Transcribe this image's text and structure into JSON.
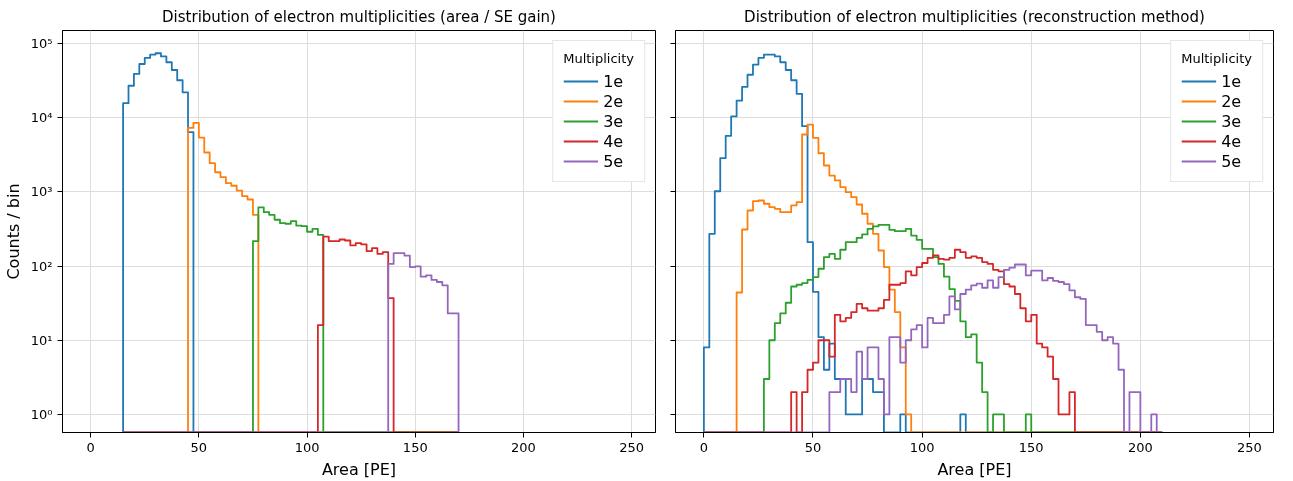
{
  "chart_data": [
    {
      "type": "histogram",
      "title": "Distribution of electron multiplicities (area / SE gain)",
      "xlabel": "Area [PE]",
      "ylabel": "Counts / bin",
      "legend_title": "Multiplicity",
      "legend": "top right",
      "grid": true,
      "log": "y",
      "xlim": [
        -13,
        261
      ],
      "ylim": [
        0.57,
        150000
      ],
      "xticks": [
        0,
        50,
        100,
        150,
        200,
        250
      ],
      "yticks": [
        {
          "value": 1,
          "label": "10⁰"
        },
        {
          "value": 10,
          "label": "10¹"
        },
        {
          "value": 100,
          "label": "10²"
        },
        {
          "value": 1000,
          "label": "10³"
        },
        {
          "value": 10000,
          "label": "10⁴"
        },
        {
          "value": 100000,
          "label": "10⁵"
        }
      ],
      "bins": [
        15,
        17.5,
        20,
        22.5,
        25,
        27.5,
        30,
        32.5,
        35,
        37.5,
        40,
        42.5,
        45,
        47.5,
        50,
        52.5,
        55,
        57.5,
        60,
        62.5,
        65,
        67.5,
        70,
        72.5,
        75,
        77.5,
        80,
        82.5,
        85,
        87.5,
        90,
        92.5,
        95,
        97.5,
        100,
        102.5,
        105,
        107.5,
        110,
        112.5,
        115,
        117.5,
        120,
        122.5,
        125,
        127.5,
        130,
        132.5,
        135,
        137.5,
        140,
        142.5,
        145,
        147.5,
        150,
        152.5,
        155,
        157.5,
        160,
        162.5,
        165,
        167.5,
        170
      ],
      "series": [
        {
          "name": "1e",
          "color": "#1f77b4",
          "values": [
            15700,
            27000,
            39000,
            53000,
            64000,
            71000,
            74000,
            67000,
            56000,
            44000,
            32000,
            22000,
            6400,
            null,
            null,
            null,
            null,
            null,
            null,
            null,
            null,
            null,
            null,
            null,
            null,
            null,
            null,
            null,
            null,
            null,
            null,
            null,
            null,
            null,
            null,
            null,
            null,
            null,
            null,
            null,
            null,
            null,
            null,
            null,
            null,
            null,
            null,
            null,
            null,
            null,
            null,
            null,
            null,
            null,
            null,
            null,
            null,
            null,
            null,
            null,
            null,
            null
          ]
        },
        {
          "name": "2e",
          "color": "#ff7f0e",
          "values": [
            null,
            null,
            null,
            null,
            null,
            null,
            null,
            null,
            null,
            null,
            null,
            null,
            7300,
            8500,
            5400,
            3400,
            2440,
            1840,
            1580,
            1310,
            1210,
            1040,
            875,
            790,
            490,
            null,
            null,
            null,
            null,
            null,
            null,
            null,
            null,
            null,
            null,
            null,
            null,
            null,
            null,
            null,
            null,
            null,
            null,
            null,
            null,
            null,
            null,
            null,
            null,
            null,
            null,
            null,
            null,
            null,
            null,
            null,
            null,
            null,
            null,
            null,
            null,
            null
          ]
        },
        {
          "name": "3e",
          "color": "#2ca02c",
          "values": [
            null,
            null,
            null,
            null,
            null,
            null,
            null,
            null,
            null,
            null,
            null,
            null,
            null,
            null,
            null,
            null,
            null,
            null,
            null,
            null,
            null,
            null,
            null,
            null,
            217,
            620,
            533,
            491,
            421,
            379,
            372,
            403,
            352,
            345,
            290,
            318,
            264,
            null,
            null,
            null,
            null,
            null,
            null,
            null,
            null,
            null,
            null,
            null,
            null,
            null,
            null,
            null,
            null,
            null,
            null,
            null,
            null,
            null,
            null,
            null,
            null,
            null
          ]
        },
        {
          "name": "4e",
          "color": "#d62728",
          "values": [
            null,
            null,
            null,
            null,
            null,
            null,
            null,
            null,
            null,
            null,
            null,
            null,
            null,
            null,
            null,
            null,
            null,
            null,
            null,
            null,
            null,
            null,
            null,
            null,
            null,
            null,
            null,
            null,
            null,
            null,
            null,
            null,
            null,
            null,
            null,
            null,
            16,
            250,
            217,
            217,
            228,
            221,
            190,
            204,
            196,
            159,
            174,
            146,
            154,
            37,
            null,
            null,
            null,
            null,
            null,
            null,
            null,
            null,
            null,
            null,
            null,
            null
          ]
        },
        {
          "name": "5e",
          "color": "#9467bd",
          "values": [
            null,
            null,
            null,
            null,
            null,
            null,
            null,
            null,
            null,
            null,
            null,
            null,
            null,
            null,
            null,
            null,
            null,
            null,
            null,
            null,
            null,
            null,
            null,
            null,
            null,
            null,
            null,
            null,
            null,
            null,
            null,
            null,
            null,
            null,
            null,
            null,
            null,
            null,
            null,
            null,
            null,
            null,
            null,
            null,
            null,
            null,
            null,
            null,
            null,
            107,
            149,
            149,
            138,
            97,
            99,
            72,
            75,
            65,
            61,
            55,
            23,
            23
          ]
        }
      ]
    },
    {
      "type": "histogram",
      "title": "Distribution of electron multiplicities (reconstruction method)",
      "xlabel": "Area [PE]",
      "legend_title": "Multiplicity",
      "legend": "top right",
      "grid": true,
      "log": "y",
      "tick_labels": "x",
      "xlim": [
        -13,
        261
      ],
      "ylim": [
        0.57,
        150000
      ],
      "xticks": [
        0,
        50,
        100,
        150,
        200,
        250
      ],
      "yticks": [
        1,
        10,
        100,
        1000,
        10000,
        100000
      ],
      "bins": [
        0,
        2.5,
        5,
        7.5,
        10,
        12.5,
        15,
        17.5,
        20,
        22.5,
        25,
        27.5,
        30,
        32.5,
        35,
        37.5,
        40,
        42.5,
        45,
        47.5,
        50,
        52.5,
        55,
        57.5,
        60,
        62.5,
        65,
        67.5,
        70,
        72.5,
        75,
        77.5,
        80,
        82.5,
        85,
        87.5,
        90,
        92.5,
        95,
        97.5,
        100,
        102.5,
        105,
        107.5,
        110,
        112.5,
        115,
        117.5,
        120,
        122.5,
        125,
        127.5,
        130,
        132.5,
        135,
        137.5,
        140,
        142.5,
        145,
        147.5,
        150,
        152.5,
        155,
        157.5,
        160,
        162.5,
        165,
        167.5,
        170,
        172.5,
        175,
        177.5,
        180,
        182.5,
        185,
        187.5,
        190,
        192.5,
        195,
        197.5,
        200,
        202.5,
        205,
        207.5,
        210
      ],
      "series": [
        {
          "name": "1e",
          "color": "#1f77b4",
          "values": [
            8,
            272,
            1020,
            2850,
            5700,
            10400,
            17000,
            26000,
            38000,
            52000,
            64000,
            71000,
            71000,
            67000,
            56000,
            44000,
            32000,
            21000,
            7700,
            210,
            45,
            11,
            4,
            9,
            3,
            3,
            1,
            1,
            1,
            3,
            3,
            2,
            2,
            null,
            null,
            null,
            1,
            null,
            null,
            null,
            null,
            null,
            null,
            null,
            null,
            null,
            null,
            1,
            null,
            null,
            null,
            null,
            null,
            null,
            null,
            null,
            null,
            null,
            null,
            null,
            null,
            null,
            null,
            null,
            null,
            null,
            null,
            null,
            null,
            null,
            null,
            null,
            null,
            null,
            null,
            null,
            null,
            null,
            null,
            null,
            null,
            null,
            null,
            null
          ]
        },
        {
          "name": "2e",
          "color": "#ff7f0e",
          "values": [
            null,
            null,
            null,
            null,
            null,
            null,
            44,
            311,
            561,
            750,
            765,
            692,
            622,
            592,
            533,
            533,
            656,
            727,
            5940,
            8090,
            5360,
            3320,
            2270,
            1660,
            1430,
            1160,
            991,
            849,
            676,
            507,
            372,
            272,
            162,
            97,
            48,
            24,
            8,
            1,
            null,
            null,
            null,
            null,
            null,
            null,
            null,
            null,
            null,
            null,
            null,
            null,
            null,
            null,
            null,
            null,
            null,
            null,
            null,
            null,
            null,
            null,
            null,
            null,
            null,
            null,
            null,
            null,
            null,
            null,
            null,
            null,
            null,
            null,
            null,
            null,
            null,
            null,
            null,
            null,
            null,
            null,
            null,
            null,
            null,
            null
          ]
        },
        {
          "name": "3e",
          "color": "#2ca02c",
          "values": [
            null,
            null,
            null,
            null,
            null,
            null,
            null,
            null,
            null,
            null,
            null,
            3,
            10,
            17,
            23,
            32,
            53,
            56,
            59,
            65,
            71,
            92,
            132,
            146,
            125,
            166,
            210,
            210,
            240,
            267,
            318,
            342,
            360,
            360,
            308,
            295,
            295,
            318,
            258,
            226,
            171,
            171,
            132,
            107,
            72,
            49,
            34,
            18,
            11,
            12,
            5,
            2,
            null,
            1,
            1,
            null,
            null,
            null,
            null,
            1,
            null,
            null,
            null,
            null,
            null,
            null,
            null,
            null,
            null,
            null,
            null,
            null,
            null,
            null,
            null,
            null,
            null,
            null,
            null,
            null,
            null,
            null,
            null,
            null
          ]
        },
        {
          "name": "4e",
          "color": "#d62728",
          "values": [
            null,
            null,
            null,
            null,
            null,
            null,
            null,
            null,
            null,
            null,
            null,
            null,
            null,
            null,
            null,
            null,
            2,
            null,
            2,
            4,
            5,
            10,
            10,
            6,
            22,
            18,
            20,
            24,
            31,
            27,
            25,
            25,
            27,
            35,
            56,
            56,
            59,
            85,
            75,
            97,
            110,
            129,
            139,
            125,
            122,
            129,
            166,
            154,
            129,
            135,
            129,
            113,
            107,
            89,
            85,
            57,
            53,
            42,
            27,
            18,
            22,
            9,
            8,
            6,
            3,
            1,
            1,
            2,
            null,
            null,
            null,
            null,
            null,
            null,
            null,
            null,
            null,
            null,
            null,
            null,
            null,
            null,
            null,
            null
          ]
        },
        {
          "name": "5e",
          "color": "#9467bd",
          "values": [
            null,
            null,
            null,
            null,
            null,
            null,
            null,
            null,
            null,
            null,
            null,
            null,
            null,
            null,
            null,
            null,
            null,
            null,
            null,
            null,
            null,
            null,
            null,
            2,
            2,
            3,
            3,
            2,
            7,
            3,
            8,
            8,
            3,
            1,
            11,
            11,
            5,
            10,
            14,
            16,
            8,
            20,
            17,
            17,
            22,
            39,
            26,
            42,
            48,
            55,
            58,
            51,
            64,
            51,
            71,
            89,
            95,
            105,
            105,
            75,
            87,
            87,
            64,
            69,
            63,
            61,
            57,
            47,
            38,
            36,
            16,
            16,
            13,
            10,
            11,
            9,
            4,
            null,
            2,
            2,
            null,
            null,
            1,
            null
          ]
        }
      ]
    }
  ]
}
